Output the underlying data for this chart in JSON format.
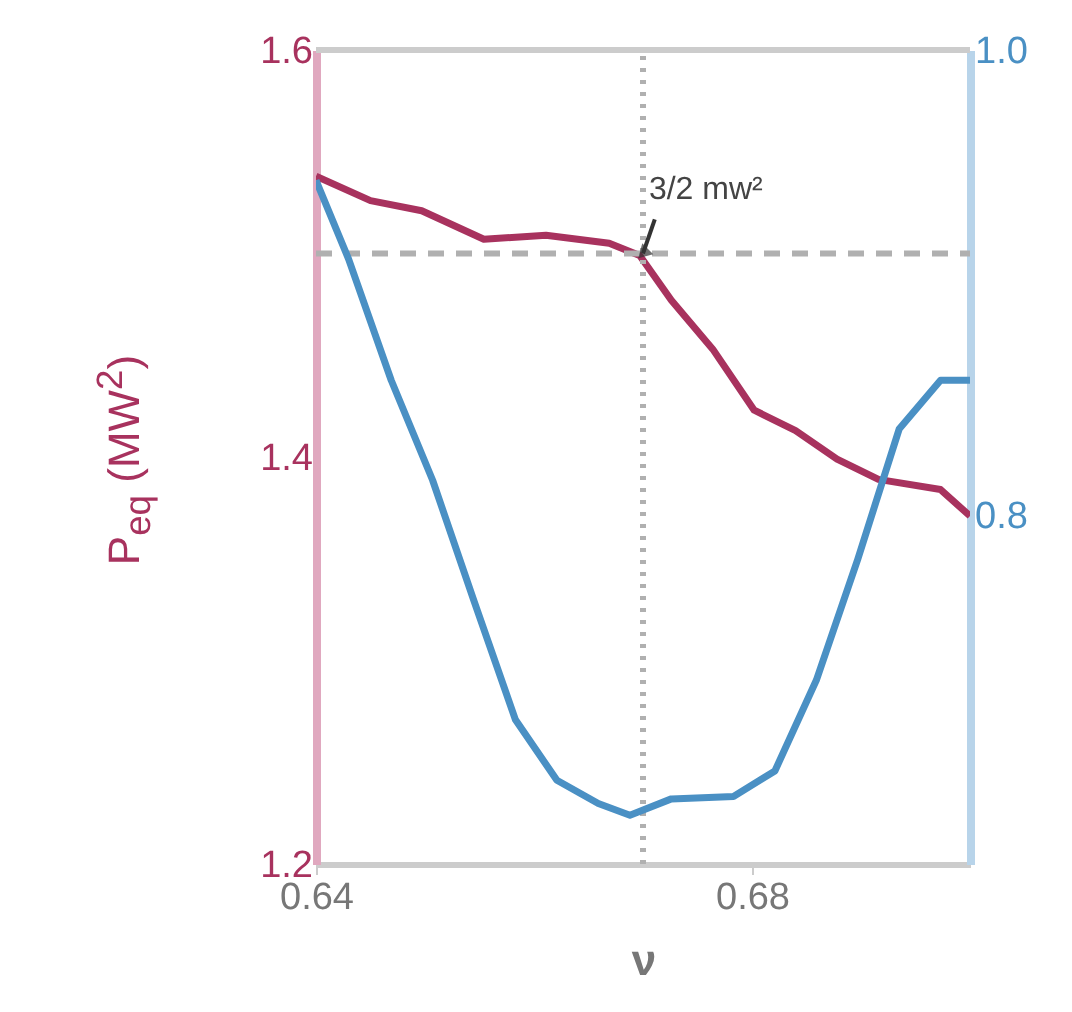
{
  "chart_data": {
    "type": "line",
    "xlabel": "ν",
    "ylabel": "P$_{eq}$ (MW$^{2}$)",
    "x": [
      0.64,
      0.645,
      0.6497,
      0.6554,
      0.6611,
      0.6669,
      0.6697,
      0.6726,
      0.6764,
      0.6802,
      0.684,
      0.6878,
      0.6916,
      0.6973,
      0.7
    ],
    "xlim": [
      0.64,
      0.7
    ],
    "xticks": [
      0.64,
      0.68
    ],
    "ylim": [
      1.2,
      1.6
    ],
    "yticks": [
      1.2,
      1.4,
      1.6
    ],
    "y2lim": [
      0.65,
      1.0
    ],
    "y2ticks": [
      0.8,
      {
        "value": 1.0,
        "label": "1.0"
      }
    ],
    "series": [
      {
        "color": "#a8325e",
        "values": [
          1.538,
          1.526,
          1.521,
          1.507,
          1.509,
          1.505,
          1.499,
          1.477,
          1.453,
          1.423,
          1.413,
          1.399,
          1.389,
          1.384,
          1.371
        ]
      },
      {
        "color": "#4a90c4",
        "axis": "y2",
        "x": [
          0.64,
          0.643,
          0.6469,
          0.6507,
          0.6545,
          0.6583,
          0.6621,
          0.6659,
          0.6688,
          0.6726,
          0.6783,
          0.6821,
          0.6859,
          0.6897,
          0.6935,
          0.6973,
          0.7
        ],
        "values": [
          0.944,
          0.91,
          0.858,
          0.815,
          0.763,
          0.712,
          0.686,
          0.676,
          0.671,
          0.678,
          0.679,
          0.69,
          0.729,
          0.781,
          0.837,
          0.858,
          0.858
        ]
      }
    ],
    "ref_lines": [
      {
        "axis": "y",
        "value": 1.5,
        "color": "#b0b0b0",
        "line_style": "dashed"
      },
      {
        "axis": "x",
        "value": 0.67,
        "color": "#b0b0b0",
        "line_style": "dotted"
      }
    ],
    "annotations": [
      {
        "text": "3/2 mw²",
        "x": 0.67,
        "y": 1.5
      }
    ],
    "grid": false,
    "marker": "none",
    "line_style": "solid"
  }
}
